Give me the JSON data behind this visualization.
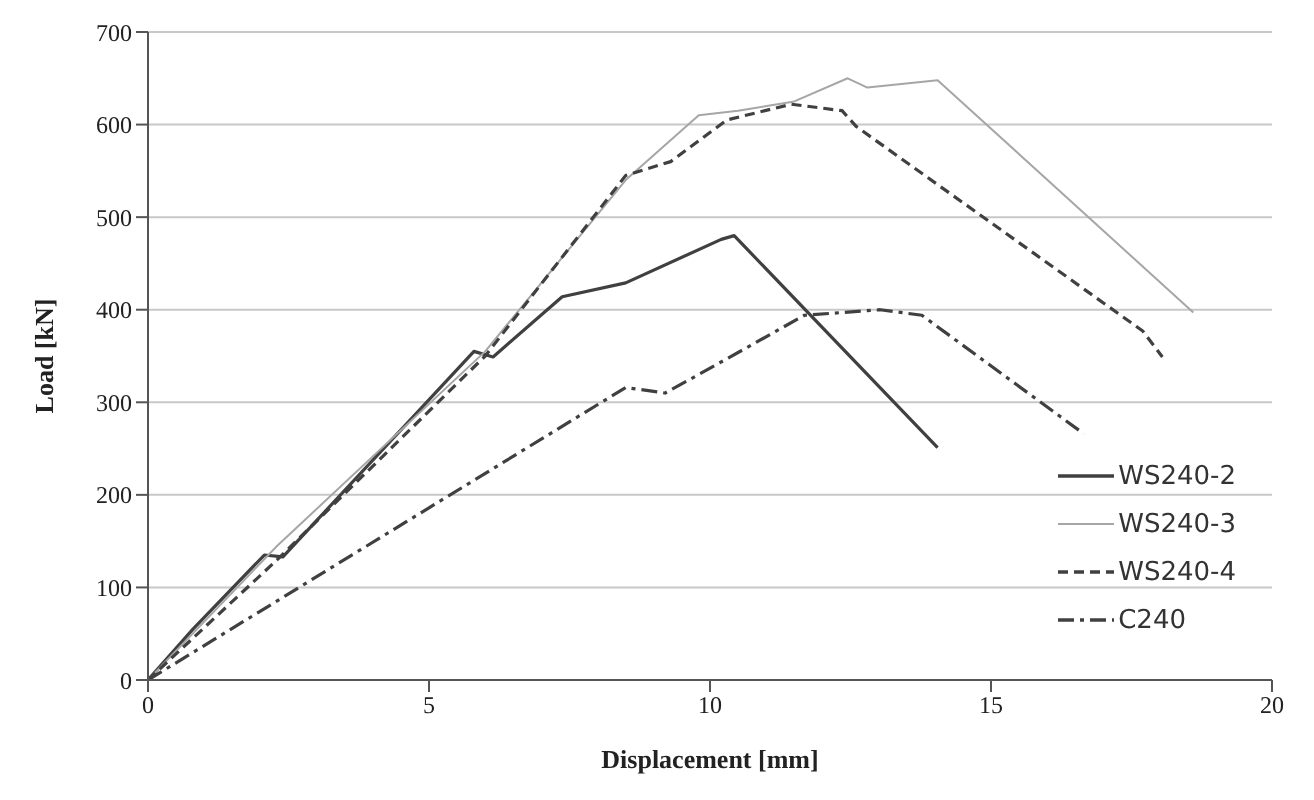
{
  "chart_data": {
    "type": "line",
    "xlabel": "Displacement [mm]",
    "ylabel": "Load [kN]",
    "xlim": [
      0,
      20
    ],
    "xticks": [
      0,
      5,
      10,
      15,
      20
    ],
    "ylim": [
      0,
      700
    ],
    "yticks": [
      0,
      100,
      200,
      300,
      400,
      500,
      600,
      700
    ],
    "grid": "y",
    "legend": "bottom right",
    "marker": "none",
    "series": [
      {
        "name": "WS240-2",
        "color": "#404040",
        "line_style": "solid",
        "x": [
          0,
          0.8,
          2.07,
          2.4,
          5.8,
          6.14,
          7.37,
          8.5,
          10.2,
          10.43,
          14.05
        ],
        "values": [
          0,
          55,
          135,
          133,
          355,
          349,
          414,
          429,
          476,
          480,
          251
        ]
      },
      {
        "name": "WS240-3",
        "color": "#a6a6a6",
        "line_style": "solid",
        "x": [
          0,
          2.3,
          6,
          8.5,
          9.8,
          10.5,
          11.5,
          12.45,
          12.8,
          14.05,
          18.6
        ],
        "values": [
          0,
          145,
          355,
          540,
          610,
          615,
          625,
          650,
          640,
          648,
          397
        ]
      },
      {
        "name": "WS240-4",
        "color": "#404040",
        "line_style": "dashed",
        "x": [
          0,
          2.3,
          6,
          8.5,
          9.3,
          10.3,
          11.45,
          12.35,
          12.6,
          17.7,
          18.05
        ],
        "values": [
          0,
          130,
          350,
          545,
          560,
          605,
          622,
          615,
          598,
          377,
          349
        ]
      },
      {
        "name": "C240",
        "color": "#404040",
        "line_style": "dashdot",
        "x": [
          0,
          5,
          8.5,
          9.2,
          9.8,
          11.68,
          13.03,
          13.77,
          16.65
        ],
        "values": [
          0,
          186,
          316,
          310,
          330,
          394,
          400,
          394,
          266
        ]
      }
    ]
  }
}
